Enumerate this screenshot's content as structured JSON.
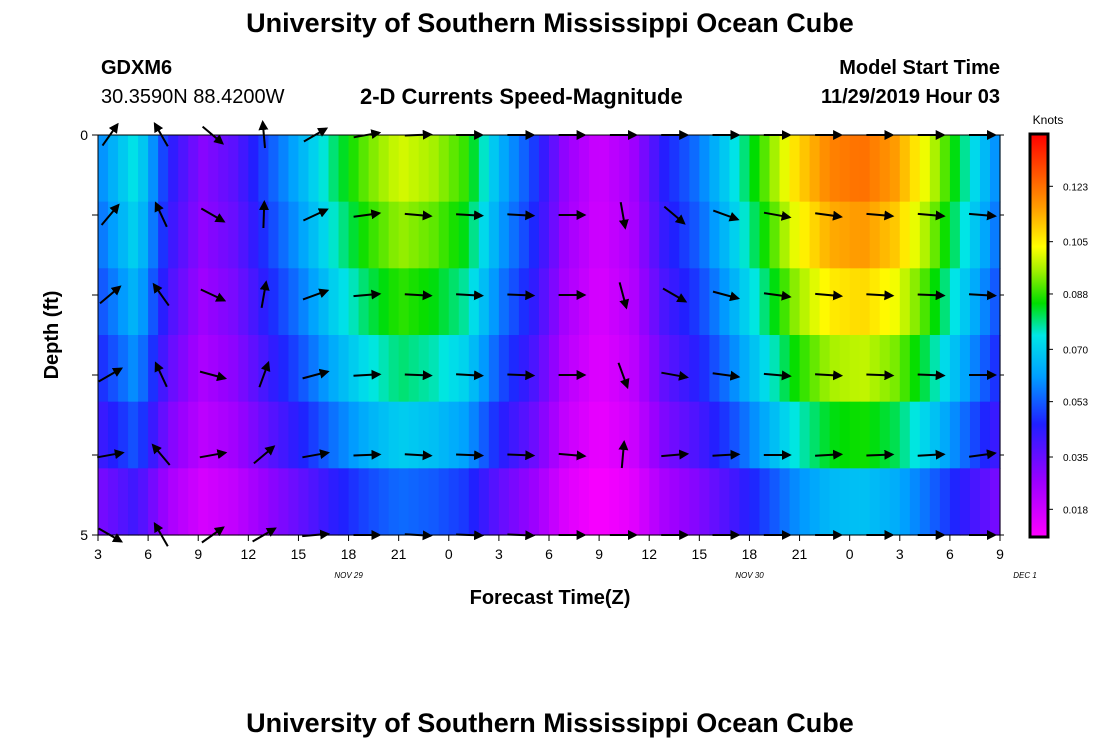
{
  "page": {
    "title_top": "University of Southern Mississippi Ocean Cube",
    "title_bottom": "University of Southern Mississippi Ocean Cube",
    "station_id": "GDXM6",
    "station_location": "30.3590N 88.4200W",
    "chart_title": "2-D Currents Speed-Magnitude",
    "model_start_label": "Model Start Time",
    "model_start_value": "11/29/2019 Hour 03"
  },
  "chart_data": {
    "type": "heatmap",
    "title": "2-D Currents Speed-Magnitude",
    "xlabel": "Forecast Time(Z)",
    "ylabel": "Depth (ft)",
    "x_tick_labels": [
      "3",
      "6",
      "9",
      "12",
      "15",
      "18",
      "21",
      "0",
      "3",
      "6",
      "9",
      "12",
      "15",
      "18",
      "21",
      "0",
      "3",
      "6",
      "9"
    ],
    "date_labels": [
      {
        "label": "NOV 29",
        "at_tick": 5
      },
      {
        "label": "NOV 30",
        "at_tick": 13
      },
      {
        "label": "DEC 1",
        "at_tick": 18.5
      }
    ],
    "ylim": [
      0,
      5
    ],
    "y_tick_labels": [
      "0",
      "",
      "",
      "",
      "",
      "5"
    ],
    "depth_levels": 5,
    "time_steps_per_tick": 3,
    "colorbar": {
      "unit": "Knots",
      "min": 0.009,
      "max": 0.14,
      "ticks": [
        "0.018",
        "0.035",
        "0.053",
        "0.070",
        "0.088",
        "0.105",
        "0.123"
      ],
      "tick_values": [
        0.018,
        0.035,
        0.053,
        0.07,
        0.088,
        0.105,
        0.123
      ]
    },
    "speed_profile_knots": [
      0.06,
      0.075,
      0.045,
      0.03,
      0.037,
      0.052,
      0.065,
      0.08,
      0.092,
      0.1,
      0.096,
      0.088,
      0.065,
      0.05,
      0.028,
      0.018,
      0.025,
      0.045,
      0.056,
      0.072,
      0.09,
      0.108,
      0.12,
      0.123,
      0.116,
      0.1,
      0.08,
      0.06
    ],
    "depth_factors": [
      1.0,
      0.95,
      0.88,
      0.8,
      0.7,
      0.55
    ],
    "vectors": [
      {
        "t": 0,
        "angles_deg": [
          55,
          50,
          40,
          30,
          10,
          -30
        ]
      },
      {
        "t": 2,
        "angles_deg": [
          120,
          115,
          125,
          115,
          130,
          120
        ]
      },
      {
        "t": 4,
        "angles_deg": [
          -40,
          -30,
          -25,
          -15,
          10,
          35
        ]
      },
      {
        "t": 6,
        "angles_deg": [
          95,
          88,
          80,
          70,
          40,
          30
        ]
      },
      {
        "t": 8,
        "angles_deg": [
          30,
          25,
          20,
          15,
          10,
          5
        ]
      },
      {
        "t": 10,
        "angles_deg": [
          10,
          8,
          5,
          3,
          2,
          0
        ]
      },
      {
        "t": 12,
        "angles_deg": [
          2,
          -5,
          -3,
          -2,
          -3,
          -3
        ]
      },
      {
        "t": 14,
        "angles_deg": [
          0,
          -3,
          -3,
          -3,
          -2,
          -2
        ]
      },
      {
        "t": 16,
        "angles_deg": [
          0,
          -3,
          -2,
          -2,
          -2,
          -2
        ]
      },
      {
        "t": 18,
        "angles_deg": [
          0,
          0,
          0,
          0,
          -5,
          0
        ]
      },
      {
        "t": 20,
        "angles_deg": [
          0,
          -80,
          -75,
          -70,
          85,
          0
        ]
      },
      {
        "t": 22,
        "angles_deg": [
          0,
          -40,
          -30,
          -10,
          5,
          0
        ]
      },
      {
        "t": 24,
        "angles_deg": [
          0,
          -20,
          -15,
          -8,
          3,
          0
        ]
      },
      {
        "t": 26,
        "angles_deg": [
          0,
          -10,
          -8,
          -5,
          0,
          0
        ]
      },
      {
        "t": 28,
        "angles_deg": [
          0,
          -8,
          -5,
          -3,
          3,
          0
        ]
      },
      {
        "t": 30,
        "angles_deg": [
          0,
          -5,
          -3,
          -2,
          2,
          0
        ]
      },
      {
        "t": 32,
        "angles_deg": [
          0,
          -5,
          -2,
          -2,
          3,
          0
        ]
      },
      {
        "t": 34,
        "angles_deg": [
          0,
          -5,
          -3,
          0,
          8,
          0
        ]
      }
    ]
  }
}
